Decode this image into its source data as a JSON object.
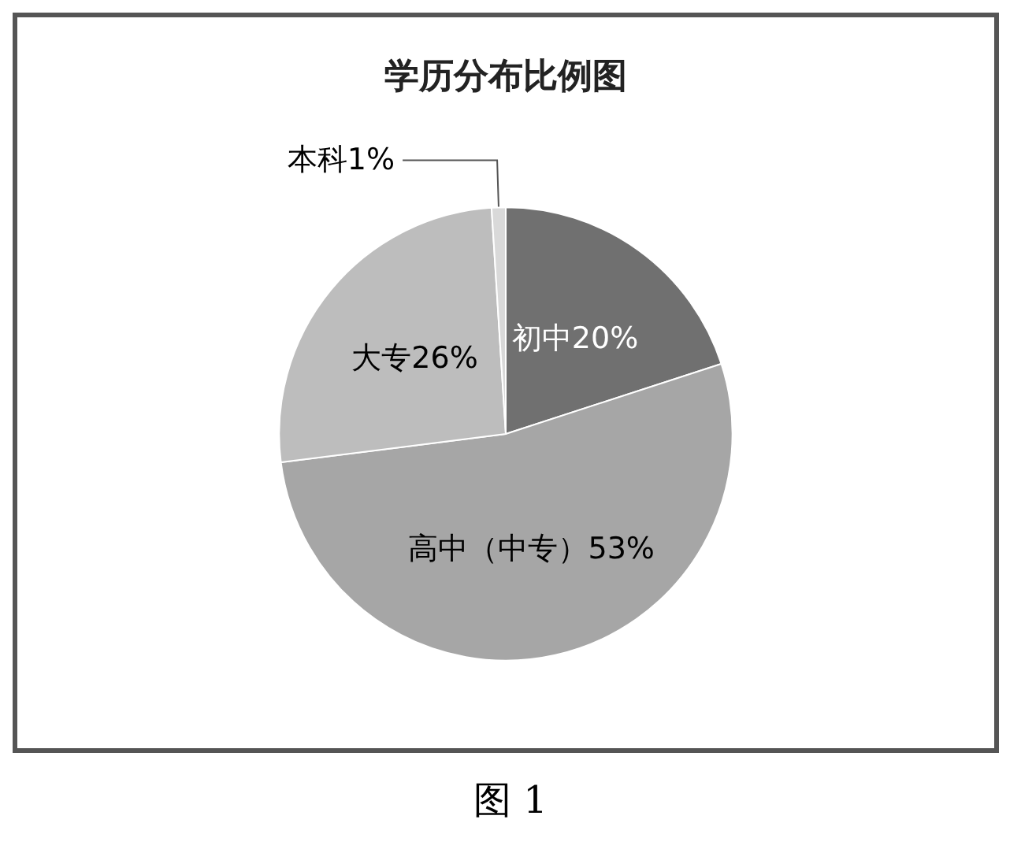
{
  "chart_data": {
    "type": "pie",
    "title": "学历分布比例图",
    "categories": [
      "初中",
      "高中（中专）",
      "大专",
      "本科"
    ],
    "values": [
      20,
      53,
      26,
      1
    ],
    "value_labels": [
      "20%",
      "53%",
      "26%",
      "1%"
    ],
    "colors": [
      "#707070",
      "#a6a6a6",
      "#bdbdbd",
      "#d9d9d9"
    ],
    "legend": false,
    "annotations": [
      "图 1"
    ]
  }
}
